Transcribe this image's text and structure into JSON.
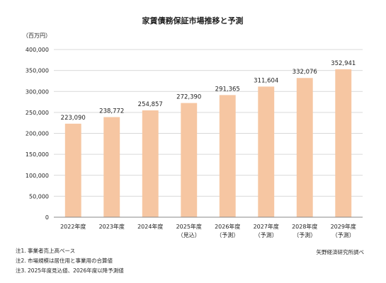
{
  "chart_data": {
    "type": "bar",
    "title": "家賃債務保証市場推移と予測",
    "ylabel": "（百万円）",
    "xlabel": "",
    "ylim": [
      0,
      400000
    ],
    "yticks": [
      0,
      50000,
      100000,
      150000,
      200000,
      250000,
      300000,
      350000,
      400000
    ],
    "ytick_labels": [
      "0",
      "50,000",
      "100,000",
      "150,000",
      "200,000",
      "250,000",
      "300,000",
      "350,000",
      "400,000"
    ],
    "grid": true,
    "bar_color": "#f6c6a2",
    "categories": [
      {
        "label": "2022年度",
        "sub": ""
      },
      {
        "label": "2023年度",
        "sub": ""
      },
      {
        "label": "2024年度",
        "sub": ""
      },
      {
        "label": "2025年度",
        "sub": "（見込）"
      },
      {
        "label": "2026年度",
        "sub": "（予測）"
      },
      {
        "label": "2027年度",
        "sub": "（予測）"
      },
      {
        "label": "2028年度",
        "sub": "（予測）"
      },
      {
        "label": "2029年度",
        "sub": "（予測）"
      }
    ],
    "values": [
      223090,
      238772,
      254857,
      272390,
      291365,
      311604,
      332076,
      352941
    ],
    "value_labels": [
      "223,090",
      "238,772",
      "254,857",
      "272,390",
      "291,365",
      "311,604",
      "332,076",
      "352,941"
    ]
  },
  "notes": [
    "注1. 事業者売上高ベース",
    "注2. 市場規模は居住用と事業用の合算値",
    "注3. 2025年度見込値、2026年度以降予測値"
  ],
  "source": "矢野経済研究所調べ"
}
